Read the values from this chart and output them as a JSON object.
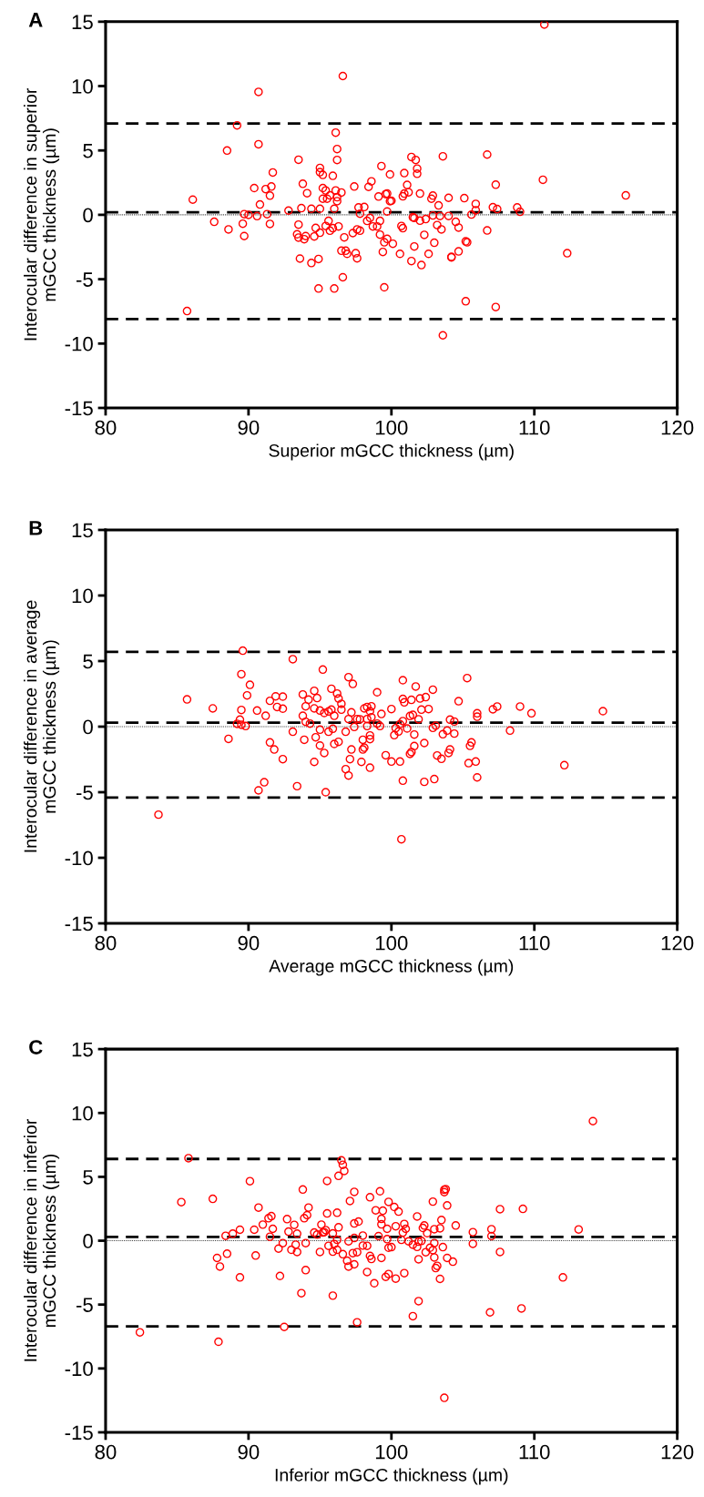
{
  "chart_data": [
    {
      "type": "scatter",
      "title": "A",
      "xlabel": "Superior mGCC thickness (µm)",
      "ylabel": "Interocular difference in superior\nmGCC thickness (µm)",
      "color": "#ff0000",
      "marker": "circle",
      "xlim": [
        80,
        120
      ],
      "xticks": [
        80,
        90,
        100,
        110,
        120
      ],
      "ylim": [
        -15,
        15
      ],
      "yticks": [
        -15,
        -10,
        -5,
        0,
        5,
        10,
        15
      ],
      "ref_lines": [
        {
          "axis": "y",
          "value": 7.1,
          "line_style": "dashed"
        },
        {
          "axis": "y",
          "value": 0.2,
          "line_style": "dashed"
        },
        {
          "axis": "y",
          "value": -8.1,
          "line_style": "dashed"
        },
        {
          "axis": "y",
          "value": 0,
          "line_style": "dotted"
        }
      ],
      "x": [
        86.1,
        85.7,
        87.6,
        88.6,
        88.5,
        89.2,
        89.6,
        89.7,
        89.7,
        90.0,
        90.4,
        90.6,
        90.7,
        90.7,
        90.8,
        91.2,
        91.3,
        91.5,
        91.5,
        91.6,
        91.7,
        92.8,
        93.5,
        93.5,
        93.7,
        93.6,
        93.4,
        93.5,
        93.9,
        94.0,
        93.8,
        94.1,
        94.4,
        94.4,
        94.6,
        94.7,
        94.9,
        94.9,
        95.0,
        95.0,
        95.0,
        95.0,
        95.2,
        95.2,
        95.2,
        95.4,
        95.4,
        95.5,
        95.6,
        95.7,
        95.7,
        95.9,
        95.9,
        96.0,
        96.0,
        96.1,
        96.2,
        96.2,
        96.1,
        96.2,
        96.2,
        96.3,
        96.5,
        96.6,
        96.6,
        96.5,
        96.7,
        96.8,
        96.9,
        97.4,
        97.3,
        97.5,
        97.6,
        97.6,
        97.8,
        97.7,
        97.8,
        98.1,
        98.3,
        98.4,
        98.5,
        98.6,
        98.7,
        99.0,
        99.1,
        99.2,
        99.2,
        99.3,
        99.4,
        99.5,
        99.5,
        99.6,
        99.7,
        99.7,
        99.7,
        99.9,
        99.9,
        100.0,
        100.1,
        100.6,
        100.7,
        100.8,
        100.8,
        100.9,
        100.9,
        101.1,
        101.2,
        101.4,
        101.4,
        101.5,
        101.6,
        101.6,
        101.7,
        101.8,
        101.8,
        102.0,
        102.0,
        102.1,
        102.3,
        102.4,
        102.6,
        102.8,
        102.9,
        102.9,
        103.0,
        103.2,
        103.3,
        103.4,
        103.5,
        103.6,
        103.6,
        104.0,
        104.0,
        104.2,
        104.2,
        104.5,
        104.7,
        104.7,
        105.1,
        105.2,
        105.2,
        105.3,
        105.6,
        105.9,
        105.9,
        106.7,
        106.7,
        107.1,
        107.3,
        107.3,
        107.4,
        108.8,
        109.0,
        110.6,
        110.7,
        112.3,
        116.4
      ],
      "values": [
        1.18,
        -7.47,
        -0.54,
        -1.13,
        4.99,
        6.95,
        -0.69,
        -1.65,
        0.05,
        0,
        2.08,
        -0.1,
        9.55,
        5.48,
        0.8,
        2.0,
        0.05,
        -0.71,
        1.49,
        2.2,
        3.29,
        0.33,
        4.28,
        -0.76,
        0.52,
        -3.4,
        -1.51,
        -1.77,
        -1.89,
        -1.65,
        2.41,
        1.68,
        -3.74,
        0.47,
        -1.68,
        -1.02,
        -3.43,
        -5.72,
        -1.39,
        0.47,
        3.64,
        3.31,
        3.1,
        2.08,
        1.25,
        1.89,
        -0.87,
        1.25,
        -0.47,
        1.51,
        -1.23,
        3.03,
        -1.04,
        -5.72,
        0.47,
        6.38,
        4.26,
        5.11,
        1.89,
        1.06,
        1.37,
        -0.9,
        1.73,
        10.78,
        -4.85,
        -2.79,
        -1.75,
        -2.79,
        -3.03,
        2.2,
        -1.42,
        -2.98,
        -3.38,
        -1.13,
        -1.23,
        0.57,
        0.09,
        0.61,
        -0.47,
        2.17,
        -0.24,
        2.6,
        -0.9,
        -0.9,
        1.42,
        -0.47,
        -1.54,
        3.78,
        -2.88,
        -5.63,
        -2.13,
        1.61,
        1.65,
        0.26,
        -1.87,
        3.14,
        1.06,
        1.09,
        -2.25,
        -3.03,
        -0.87,
        -1.04,
        1.44,
        1.65,
        3.24,
        2.32,
        1.75,
        4.49,
        -3.59,
        -0.19,
        -0.24,
        -2.46,
        4.26,
        3.59,
        3.19,
        1.65,
        -0.45,
        -3.9,
        -1.56,
        -0.33,
        -3.03,
        1.25,
        1.49,
        -0.05,
        -2.17,
        -0.8,
        0.73,
        -0.09,
        -1.13,
        4.54,
        -9.36,
        -0.09,
        1.32,
        -3.26,
        -3.31,
        -0.54,
        -0.99,
        -2.84,
        1.3,
        -6.71,
        -2.06,
        -2.13,
        0.02,
        0.85,
        0.35,
        4.68,
        -1.21,
        0.59,
        2.34,
        -7.16,
        0.45,
        0.57,
        0.24,
        2.72,
        14.78,
        -2.98,
        1.51
      ]
    },
    {
      "type": "scatter",
      "title": "B",
      "xlabel": "Average mGCC thickness (µm)",
      "ylabel": "Interocular difference in average\nmGCC thickness (µm)",
      "color": "#ff0000",
      "marker": "circle",
      "xlim": [
        80,
        120
      ],
      "xticks": [
        80,
        90,
        100,
        110,
        120
      ],
      "ylim": [
        -15,
        15
      ],
      "yticks": [
        -15,
        -10,
        -5,
        0,
        5,
        10,
        15
      ],
      "ref_lines": [
        {
          "axis": "y",
          "value": 5.7,
          "line_style": "dashed"
        },
        {
          "axis": "y",
          "value": 0.3,
          "line_style": "dashed"
        },
        {
          "axis": "y",
          "value": -5.4,
          "line_style": "dashed"
        },
        {
          "axis": "y",
          "value": 0,
          "line_style": "dotted"
        }
      ],
      "x": [
        83.7,
        85.7,
        87.5,
        88.6,
        89.2,
        89.4,
        89.5,
        89.6,
        89.5,
        89.5,
        89.8,
        89.9,
        90.1,
        90.6,
        90.7,
        91.1,
        91.2,
        91.5,
        91.5,
        91.8,
        91.9,
        92.0,
        92.4,
        92.4,
        92.4,
        93.1,
        93.1,
        93.4,
        93.8,
        93.8,
        93.9,
        94.0,
        94.0,
        94.2,
        94.3,
        94.6,
        94.6,
        94.6,
        94.7,
        94.8,
        95.0,
        95.0,
        95.0,
        95.2,
        95.3,
        95.3,
        95.4,
        95.6,
        95.6,
        95.8,
        95.8,
        95.9,
        96.0,
        96.0,
        96.2,
        96.3,
        96.3,
        96.5,
        96.5,
        96.8,
        96.8,
        97.0,
        97.0,
        97.0,
        97.2,
        97.1,
        97.2,
        97.3,
        97.4,
        97.6,
        97.8,
        97.9,
        98.0,
        98.0,
        98.1,
        98.1,
        98.3,
        98.3,
        98.3,
        98.5,
        98.5,
        98.5,
        98.5,
        98.6,
        98.6,
        99.0,
        99.0,
        99.2,
        99.3,
        99.6,
        100.0,
        100.0,
        100.2,
        100.3,
        100.6,
        100.5,
        100.6,
        100.8,
        100.8,
        100.8,
        100.7,
        100.8,
        100.9,
        101.1,
        101.3,
        101.3,
        101.4,
        101.4,
        101.5,
        101.6,
        101.6,
        101.7,
        101.9,
        102.0,
        102.1,
        102.3,
        102.3,
        102.4,
        102.6,
        102.9,
        102.9,
        103.0,
        103.1,
        103.2,
        103.5,
        103.6,
        103.9,
        104.0,
        104.1,
        104.1,
        104.4,
        104.4,
        104.7,
        105.3,
        105.4,
        105.5,
        105.6,
        105.9,
        106.0,
        106.0,
        106.0,
        107.1,
        107.4,
        108.3,
        109.0,
        109.8,
        112.1,
        114.8
      ],
      "values": [
        -6.71,
        2.08,
        1.39,
        -0.93,
        0.21,
        0.53,
        0.14,
        5.79,
        4.0,
        1.27,
        0.05,
        2.38,
        3.19,
        1.23,
        -4.86,
        -4.24,
        0.83,
        1.97,
        -1.2,
        -1.74,
        2.31,
        1.5,
        1.37,
        2.29,
        -2.48,
        -0.39,
        5.14,
        -4.54,
        0.83,
        2.45,
        -1.0,
        1.55,
        0.37,
        2.06,
        0.23,
        2.73,
        1.39,
        -2.69,
        -0.81,
        2.18,
        1.23,
        -0.23,
        -1.44,
        4.35,
        1.04,
        -2.01,
        -5.0,
        -0.39,
        1.16,
        2.89,
        1.3,
        -0.16,
        0.83,
        -1.32,
        2.52,
        2.15,
        -1.16,
        1.74,
        1.3,
        -3.24,
        -0.39,
        -3.73,
        3.77,
        0.58,
        -1.74,
        -2.48,
        1.09,
        3.26,
        -0.02,
        0.58,
        0.56,
        -2.69,
        -1.0,
        -1.74,
        -1.6,
        1.39,
        0.05,
        1.5,
        0.58,
        -0.67,
        -0.95,
        -3.13,
        1.18,
        1.55,
        0.72,
        2.62,
        0.23,
        0.05,
        0.97,
        -2.18,
        1.34,
        -2.66,
        -0.65,
        -0.12,
        -2.66,
        -0.37,
        0.19,
        0.42,
        3.54,
        -4.12,
        -8.59,
        2.11,
        1.85,
        -0.14,
        -2.08,
        0.81,
        -1.94,
        2.04,
        0.9,
        -0.6,
        -1.48,
        3.06,
        0.56,
        2.15,
        1.3,
        -4.21,
        -1.25,
        2.25,
        1.34,
        2.82,
        -0.09,
        -4.0,
        0.07,
        -2.2,
        -2.45,
        -0.58,
        -0.3,
        -2.01,
        0.53,
        -1.74,
        0.39,
        -0.53,
        1.94,
        3.7,
        -2.78,
        -1.46,
        -1.2,
        -2.66,
        0.76,
        1.02,
        -3.87,
        1.32,
        1.53,
        -0.3,
        1.53,
        1.02,
        -2.94,
        1.18
      ]
    },
    {
      "type": "scatter",
      "title": "C",
      "xlabel": "Inferior mGCC thickness (µm)",
      "ylabel": "Interocular difference in inferior\nmGCC thickness (µm)",
      "color": "#ff0000",
      "marker": "circle",
      "xlim": [
        80,
        120
      ],
      "xticks": [
        80,
        90,
        100,
        110,
        120
      ],
      "ylim": [
        -15,
        15
      ],
      "yticks": [
        -15,
        -10,
        -5,
        0,
        5,
        10,
        15
      ],
      "ref_lines": [
        {
          "axis": "y",
          "value": 6.4,
          "line_style": "dashed"
        },
        {
          "axis": "y",
          "value": 0.3,
          "line_style": "dashed"
        },
        {
          "axis": "y",
          "value": -6.7,
          "line_style": "dashed"
        },
        {
          "axis": "y",
          "value": 0,
          "line_style": "dotted"
        }
      ],
      "x": [
        82.4,
        85.3,
        85.8,
        87.5,
        87.8,
        87.9,
        88.0,
        88.4,
        88.5,
        88.9,
        89.4,
        89.4,
        90.1,
        90.4,
        90.5,
        90.7,
        91.0,
        91.4,
        91.6,
        91.5,
        91.7,
        92.1,
        92.2,
        92.4,
        92.5,
        92.7,
        92.8,
        93.0,
        93.2,
        93.3,
        93.4,
        93.4,
        93.7,
        93.8,
        93.9,
        94.0,
        94.0,
        94.1,
        94.2,
        94.6,
        94.8,
        95.0,
        95.1,
        95.2,
        95.3,
        95.5,
        95.4,
        95.5,
        95.6,
        95.9,
        95.9,
        95.9,
        96.0,
        96.2,
        96.2,
        96.2,
        96.3,
        96.3,
        96.5,
        96.6,
        96.7,
        96.6,
        96.9,
        97.0,
        97.0,
        97.1,
        97.3,
        97.4,
        97.4,
        97.4,
        97.4,
        97.6,
        97.6,
        97.7,
        98.0,
        98.0,
        98.3,
        98.3,
        98.5,
        98.5,
        98.6,
        98.8,
        98.9,
        99.2,
        99.1,
        99.3,
        99.3,
        99.3,
        99.4,
        99.6,
        99.7,
        99.7,
        99.8,
        99.8,
        99.8,
        100.0,
        100.2,
        100.3,
        100.3,
        100.5,
        100.7,
        100.8,
        100.9,
        100.9,
        101.0,
        101.2,
        101.5,
        101.8,
        101.8,
        101.9,
        101.5,
        101.9,
        101.9,
        102.1,
        102.2,
        102.3,
        102.4,
        102.5,
        102.7,
        102.9,
        102.9,
        103.0,
        103.0,
        103.0,
        103.1,
        103.2,
        103.4,
        103.4,
        103.5,
        103.6,
        103.7,
        103.7,
        103.8,
        103.7,
        103.9,
        103.9,
        104.3,
        104.5,
        105.7,
        105.7,
        106.9,
        107.0,
        107.0,
        107.6,
        107.6,
        109.1,
        109.2,
        112.0,
        113.1,
        114.1
      ],
      "values": [
        -7.17,
        3.02,
        6.46,
        3.28,
        -1.35,
        -7.91,
        -2.02,
        0.38,
        -1.02,
        0.55,
        0.86,
        -2.87,
        4.66,
        0.86,
        -1.16,
        2.59,
        1.26,
        1.76,
        1.92,
        0.31,
        0.93,
        -0.62,
        -2.76,
        -0.19,
        -6.75,
        1.69,
        0.71,
        -0.71,
        1.24,
        -0.31,
        -0.88,
        0.55,
        -4.11,
        4.01,
        1.76,
        -2.3,
        -0.19,
        2.0,
        2.59,
        0.64,
        0.48,
        -0.88,
        1.26,
        0.64,
        0.67,
        4.68,
        0.83,
        2.14,
        -0.4,
        0.57,
        -4.3,
        -0.86,
        -0.26,
        2.19,
        -0.71,
        0.07,
        5.08,
        1.05,
        6.29,
        5.94,
        5.46,
        -1.05,
        -1.57,
        -0.05,
        -2.02,
        3.11,
        -0.97,
        1.35,
        3.82,
        -1.85,
        0.21,
        -6.39,
        -0.9,
        1.5,
        0.4,
        -0.38,
        -2.45,
        -0.4,
        3.4,
        -1.19,
        -1.43,
        -3.33,
        2.38,
        3.87,
        0.36,
        -1.35,
        1.71,
        1.28,
        2.35,
        -2.83,
        0.93,
        0.12,
        -2.61,
        3.04,
        -0.55,
        -0.5,
        2.64,
        1.13,
        -2.97,
        2.28,
        0.07,
        0.64,
        -2.54,
        1.31,
        0.93,
        -0.05,
        -0.31,
        -0.48,
        1.9,
        -4.73,
        -5.91,
        -1.45,
        -0.07,
        -0.02,
        1.0,
        1.19,
        -0.9,
        0.59,
        -0.55,
        -0.74,
        3.06,
        0.9,
        -0.19,
        -1.31,
        -2.14,
        -1.97,
        -2.99,
        0.97,
        1.62,
        -0.5,
        3.8,
        3.99,
        4.04,
        -12.3,
        -1.35,
        2.76,
        -1.64,
        1.19,
        0.67,
        -0.24,
        -5.61,
        0.36,
        0.9,
        2.47,
        -0.88,
        -5.3,
        2.49,
        -2.87,
        0.88,
        9.36
      ]
    }
  ]
}
